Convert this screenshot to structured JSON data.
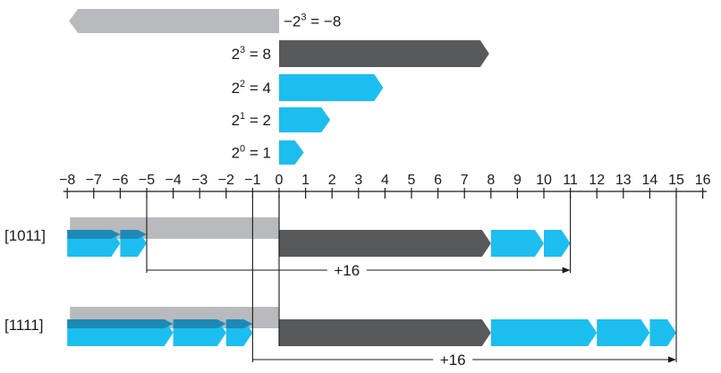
{
  "colors": {
    "negative": "#b9babd",
    "dark": "#58595b",
    "cyan": "#1cbef0",
    "cyan_dark": "#1d8ab6",
    "line": "#1a1a1a"
  },
  "weights": [
    {
      "base": "−2",
      "exp": "3",
      "rest": " = −8",
      "value": -8
    },
    {
      "base": "2",
      "exp": "3",
      "rest": " = 8",
      "value": 8
    },
    {
      "base": "2",
      "exp": "2",
      "rest": " = 4",
      "value": 4
    },
    {
      "base": "2",
      "exp": "1",
      "rest": " = 2",
      "value": 2
    },
    {
      "base": "2",
      "exp": "0",
      "rest": " = 1",
      "value": 1
    }
  ],
  "axis": {
    "ticks": [
      "−8",
      "−7",
      "−6",
      "−5",
      "−4",
      "−3",
      "−2",
      "−1",
      "0",
      "1",
      "2",
      "3",
      "4",
      "5",
      "6",
      "7",
      "8",
      "9",
      "10",
      "11",
      "12",
      "13",
      "14",
      "15",
      "16"
    ]
  },
  "rows": [
    {
      "label": "[1011]",
      "unsigned": 11,
      "signed": -5,
      "bits": [
        1,
        0,
        1,
        1
      ],
      "offset_label": "+16"
    },
    {
      "label": "[1111]",
      "unsigned": 15,
      "signed": -1,
      "bits": [
        1,
        1,
        1,
        1
      ],
      "offset_label": "+16"
    }
  ]
}
